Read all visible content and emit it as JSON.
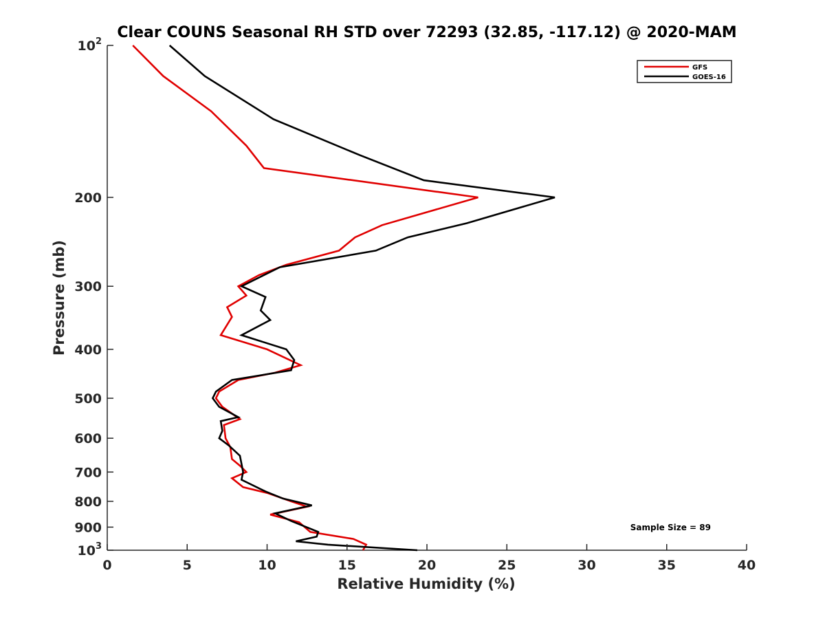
{
  "chart_data": {
    "type": "line",
    "title": "Clear COUNS Seasonal RH STD over 72293 (32.85, -117.12) @ 2020-MAM",
    "xlabel": "Relative Humidity (%)",
    "ylabel": "Pressure (mb)",
    "xlim": [
      0,
      40
    ],
    "ylim": [
      100,
      1000
    ],
    "yscale": "log",
    "yreversed": true,
    "x_ticks": [
      "0",
      "5",
      "10",
      "15",
      "20",
      "25",
      "30",
      "35",
      "40"
    ],
    "y_ticks": [
      {
        "value": 100,
        "base": "10",
        "exp": "2"
      },
      {
        "value": 200,
        "label": "200"
      },
      {
        "value": 300,
        "label": "300"
      },
      {
        "value": 400,
        "label": "400"
      },
      {
        "value": 500,
        "label": "500"
      },
      {
        "value": 600,
        "label": "600"
      },
      {
        "value": 700,
        "label": "700"
      },
      {
        "value": 800,
        "label": "800"
      },
      {
        "value": 900,
        "label": "900"
      },
      {
        "value": 1000,
        "base": "10",
        "exp": "3"
      }
    ],
    "legend_position": "top-right",
    "annotation": "Sample Size = 89",
    "series": [
      {
        "name": "GFS",
        "color": "#e00000",
        "points": [
          [
            1.6,
            100
          ],
          [
            3.5,
            115
          ],
          [
            6.5,
            135
          ],
          [
            8.7,
            158
          ],
          [
            9.8,
            175
          ],
          [
            23.2,
            200
          ],
          [
            17.2,
            227
          ],
          [
            15.5,
            240
          ],
          [
            14.5,
            255
          ],
          [
            11.2,
            272
          ],
          [
            9.5,
            285
          ],
          [
            8.2,
            300
          ],
          [
            8.7,
            313
          ],
          [
            7.5,
            330
          ],
          [
            7.8,
            345
          ],
          [
            7.1,
            375
          ],
          [
            10,
            400
          ],
          [
            12.1,
            430
          ],
          [
            10.5,
            445
          ],
          [
            8.2,
            460
          ],
          [
            7,
            485
          ],
          [
            6.8,
            500
          ],
          [
            7.2,
            520
          ],
          [
            8.3,
            550
          ],
          [
            7.3,
            565
          ],
          [
            7.4,
            600
          ],
          [
            7.7,
            625
          ],
          [
            7.8,
            660
          ],
          [
            8.3,
            680
          ],
          [
            8.7,
            700
          ],
          [
            7.8,
            720
          ],
          [
            8.5,
            750
          ],
          [
            10,
            770
          ],
          [
            11.5,
            800
          ],
          [
            12.5,
            820
          ],
          [
            10.2,
            850
          ],
          [
            12,
            880
          ],
          [
            12.7,
            920
          ],
          [
            15.4,
            950
          ],
          [
            16.2,
            975
          ],
          [
            16,
            1000
          ]
        ]
      },
      {
        "name": "GOES-16",
        "color": "#000000",
        "points": [
          [
            3.9,
            100
          ],
          [
            6.1,
            115
          ],
          [
            10.4,
            140
          ],
          [
            15.8,
            165
          ],
          [
            19.8,
            185
          ],
          [
            28,
            200
          ],
          [
            22.5,
            225
          ],
          [
            18.8,
            240
          ],
          [
            16.8,
            255
          ],
          [
            10.8,
            275
          ],
          [
            8.4,
            300
          ],
          [
            9.9,
            315
          ],
          [
            9.6,
            335
          ],
          [
            10.2,
            350
          ],
          [
            8.4,
            375
          ],
          [
            11.2,
            400
          ],
          [
            11.7,
            420
          ],
          [
            11.5,
            440
          ],
          [
            7.8,
            460
          ],
          [
            6.8,
            485
          ],
          [
            6.6,
            500
          ],
          [
            7,
            520
          ],
          [
            8.2,
            545
          ],
          [
            7.1,
            555
          ],
          [
            7.2,
            580
          ],
          [
            7,
            600
          ],
          [
            7.6,
            620
          ],
          [
            8.3,
            650
          ],
          [
            8.5,
            700
          ],
          [
            8.4,
            725
          ],
          [
            9.9,
            765
          ],
          [
            11,
            790
          ],
          [
            12.8,
            815
          ],
          [
            10.5,
            845
          ],
          [
            11.5,
            875
          ],
          [
            13.2,
            920
          ],
          [
            13.1,
            940
          ],
          [
            11.8,
            960
          ],
          [
            13.8,
            975
          ],
          [
            19.4,
            1000
          ]
        ]
      }
    ]
  }
}
